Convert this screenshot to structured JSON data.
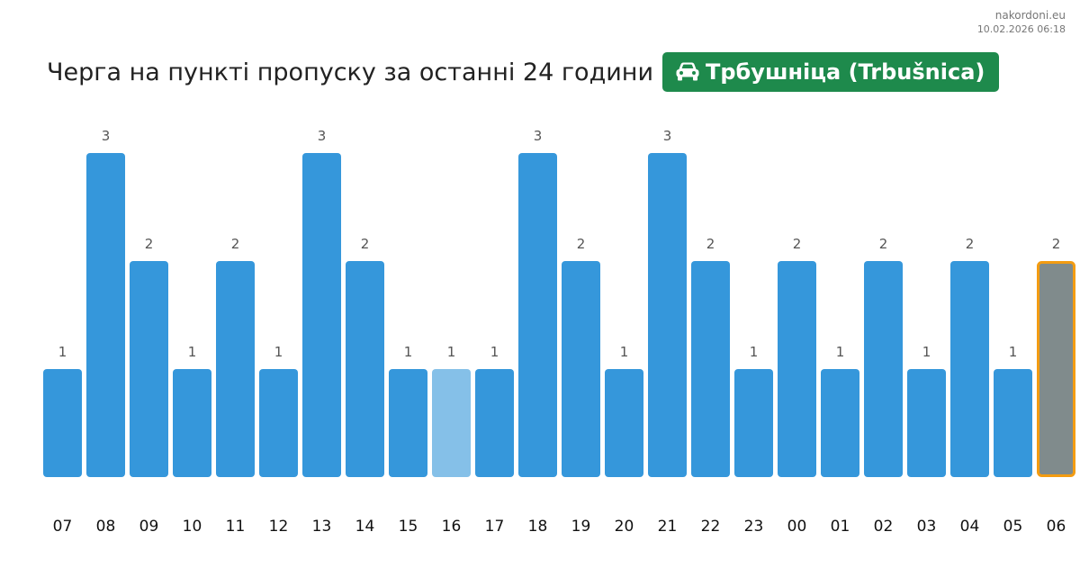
{
  "source": {
    "site": "nakordoni.eu",
    "timestamp": "10.02.2026 06:18"
  },
  "header": {
    "title": "Черга на пункті пропуску за останні 24 години",
    "crossing_name": "Трбушніца (Trbušnica)",
    "badge_icon": "car-icon",
    "badge_color": "#1e8a4c"
  },
  "colors": {
    "bar": "#3597db",
    "bar_light": "#85c0e8",
    "bar_current": "#808b8c",
    "bar_current_outline": "#f39c12",
    "value_label": "#555555",
    "tick_label": "#111111"
  },
  "chart_data": {
    "type": "bar",
    "title": "",
    "xlabel": "",
    "ylabel": "",
    "categories": [
      "07",
      "08",
      "09",
      "10",
      "11",
      "12",
      "13",
      "14",
      "15",
      "16",
      "17",
      "18",
      "19",
      "20",
      "21",
      "22",
      "23",
      "00",
      "01",
      "02",
      "03",
      "04",
      "05",
      "06"
    ],
    "values": [
      1,
      3,
      2,
      1,
      2,
      1,
      3,
      2,
      1,
      1,
      1,
      3,
      2,
      1,
      3,
      2,
      1,
      2,
      1,
      2,
      1,
      2,
      1,
      2
    ],
    "highlight_light_index": 9,
    "current_index": 23,
    "data_labels": true,
    "grid": false,
    "legend": "none",
    "ylim": [
      0,
      3
    ]
  }
}
